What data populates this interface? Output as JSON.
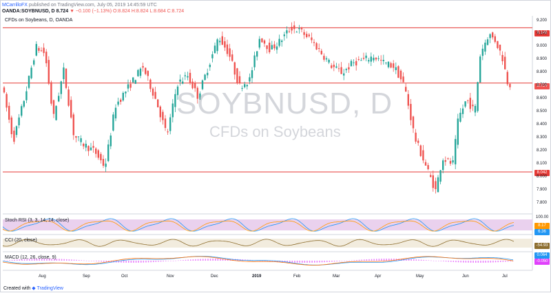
{
  "header": {
    "author": "MCarrilloFX",
    "published": "published on TradingView.com, July 05, 2019 14:45:59 UTC",
    "symbol_line": "OANDA:SOYBNUSD, D",
    "last": "8.724",
    "change": "▼ −0.100 (−1.13%)",
    "ohlc": "O:8.824 H:8.824 L:8.684 C:8.724"
  },
  "main_label": "CFDs on Soybeans, D, OANDA",
  "watermark": {
    "symbol": "SOYBNUSD, D",
    "description": "CFDs on Soybeans"
  },
  "price_tags": {
    "resistance": "9.148",
    "last": "8.724",
    "support": "8.042"
  },
  "colors": {
    "up": "#26a69a",
    "down": "#ef5350",
    "level_line": "#e53935",
    "stoch_k": "#2196f3",
    "stoch_d": "#ff9800",
    "stoch_band": "#e1bee7",
    "cci": "#8d6e2f",
    "cci_band": "#efe7d6",
    "macd": "#2196f3",
    "signal": "#ff6d00",
    "hist": "#e040fb"
  },
  "axis": {
    "price_labels": [
      "9.200",
      "9.100",
      "9.000",
      "8.900",
      "8.800",
      "8.700",
      "8.600",
      "8.500",
      "8.400",
      "8.300",
      "8.200",
      "8.100",
      "8.000",
      "7.900",
      "7.800"
    ],
    "time_labels": [
      "Aug",
      "Sep",
      "Oct",
      "Nov",
      "Dec",
      "2019",
      "Feb",
      "Mar",
      "Apr",
      "May",
      "Jun",
      "Jul"
    ]
  },
  "indicators": {
    "stoch": {
      "label": "Stoch RSI (3, 3, 14, 14, close)",
      "scale_top": "100.00",
      "value_d": "8.17",
      "value_k": "6.36"
    },
    "cci": {
      "label": "CCI (20, close)",
      "value": "-54.93"
    },
    "macd": {
      "label": "MACD (12, 26, close, 9)",
      "value_macd": "0.064",
      "value_signal": "-0.050"
    }
  },
  "footer": {
    "prefix": "Created with",
    "brand": "TradingView"
  }
}
